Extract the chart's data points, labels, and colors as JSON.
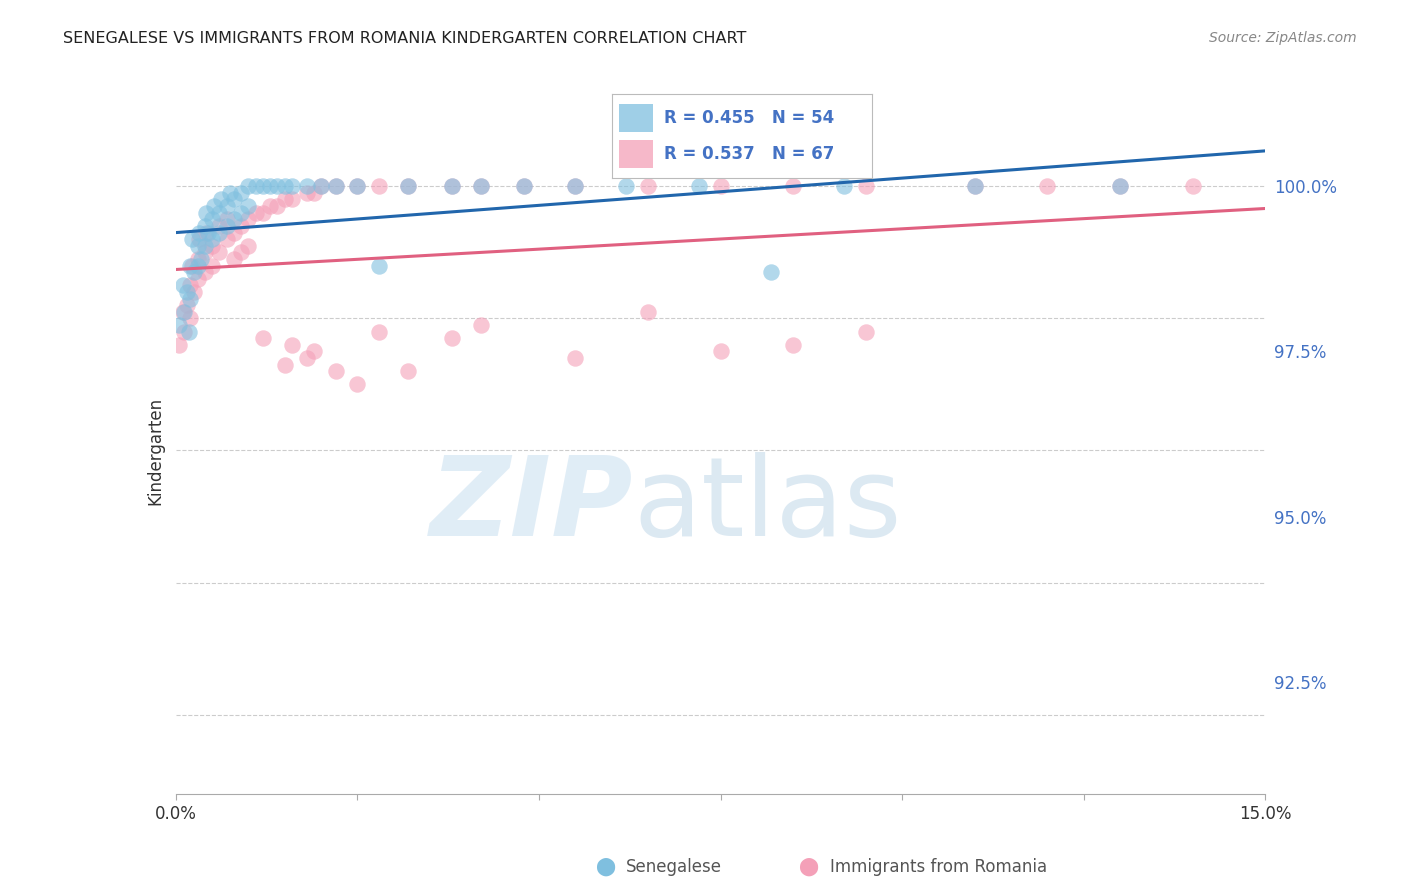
{
  "title": "SENEGALESE VS IMMIGRANTS FROM ROMANIA KINDERGARTEN CORRELATION CHART",
  "source": "Source: ZipAtlas.com",
  "ylabel": "Kindergarten",
  "ylabel_right_labels": [
    "100.0%",
    "97.5%",
    "95.0%",
    "92.5%"
  ],
  "ylabel_right_values": [
    1.0,
    0.975,
    0.95,
    0.925
  ],
  "xlim": [
    0.0,
    0.15
  ],
  "ylim": [
    0.908,
    1.012
  ],
  "legend_blue_r": "R = 0.455",
  "legend_blue_n": "N = 54",
  "legend_pink_r": "R = 0.537",
  "legend_pink_n": "N = 67",
  "blue_color": "#7fbfdf",
  "blue_line_color": "#2166ac",
  "pink_color": "#f4a0b8",
  "pink_line_color": "#e06080",
  "blue_scatter_x": [
    0.0005,
    0.001,
    0.0012,
    0.0015,
    0.0018,
    0.002,
    0.002,
    0.0022,
    0.0025,
    0.003,
    0.003,
    0.0032,
    0.0035,
    0.004,
    0.004,
    0.0042,
    0.0045,
    0.005,
    0.005,
    0.0052,
    0.006,
    0.006,
    0.0062,
    0.007,
    0.007,
    0.0075,
    0.008,
    0.008,
    0.009,
    0.009,
    0.01,
    0.01,
    0.011,
    0.012,
    0.013,
    0.014,
    0.015,
    0.016,
    0.018,
    0.02,
    0.022,
    0.025,
    0.028,
    0.032,
    0.038,
    0.042,
    0.048,
    0.055,
    0.062,
    0.072,
    0.082,
    0.092,
    0.11,
    0.13
  ],
  "blue_scatter_y": [
    0.979,
    0.985,
    0.981,
    0.984,
    0.978,
    0.988,
    0.983,
    0.992,
    0.987,
    0.991,
    0.988,
    0.993,
    0.989,
    0.994,
    0.991,
    0.996,
    0.993,
    0.995,
    0.992,
    0.997,
    0.996,
    0.993,
    0.998,
    0.997,
    0.994,
    0.999,
    0.998,
    0.995,
    0.999,
    0.996,
    1.0,
    0.997,
    1.0,
    1.0,
    1.0,
    1.0,
    1.0,
    1.0,
    1.0,
    1.0,
    1.0,
    1.0,
    0.988,
    1.0,
    1.0,
    1.0,
    1.0,
    1.0,
    1.0,
    1.0,
    0.987,
    1.0,
    1.0,
    1.0
  ],
  "pink_scatter_x": [
    0.0005,
    0.001,
    0.0012,
    0.0015,
    0.002,
    0.002,
    0.0022,
    0.0025,
    0.003,
    0.003,
    0.0032,
    0.004,
    0.004,
    0.0042,
    0.005,
    0.005,
    0.006,
    0.006,
    0.007,
    0.007,
    0.008,
    0.008,
    0.009,
    0.009,
    0.01,
    0.01,
    0.011,
    0.012,
    0.013,
    0.014,
    0.015,
    0.016,
    0.018,
    0.019,
    0.02,
    0.022,
    0.025,
    0.028,
    0.032,
    0.038,
    0.042,
    0.048,
    0.055,
    0.065,
    0.075,
    0.085,
    0.095,
    0.11,
    0.12,
    0.13,
    0.14,
    0.028,
    0.019,
    0.015,
    0.012,
    0.095,
    0.085,
    0.075,
    0.055,
    0.032,
    0.025,
    0.042,
    0.065,
    0.038,
    0.022,
    0.018,
    0.016
  ],
  "pink_scatter_y": [
    0.976,
    0.981,
    0.978,
    0.982,
    0.985,
    0.98,
    0.988,
    0.984,
    0.989,
    0.986,
    0.992,
    0.99,
    0.987,
    0.993,
    0.991,
    0.988,
    0.994,
    0.99,
    0.995,
    0.992,
    0.993,
    0.989,
    0.994,
    0.99,
    0.995,
    0.991,
    0.996,
    0.996,
    0.997,
    0.997,
    0.998,
    0.998,
    0.999,
    0.999,
    1.0,
    1.0,
    1.0,
    1.0,
    1.0,
    1.0,
    1.0,
    1.0,
    1.0,
    1.0,
    1.0,
    1.0,
    1.0,
    1.0,
    1.0,
    1.0,
    1.0,
    0.978,
    0.975,
    0.973,
    0.977,
    0.978,
    0.976,
    0.975,
    0.974,
    0.972,
    0.97,
    0.979,
    0.981,
    0.977,
    0.972,
    0.974,
    0.976
  ]
}
